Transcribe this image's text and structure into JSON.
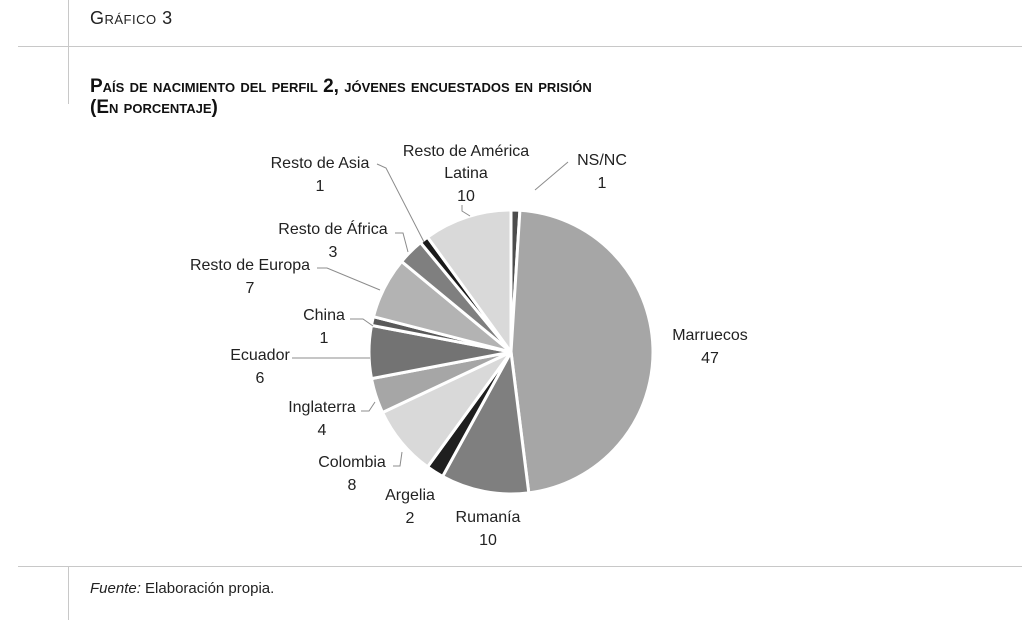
{
  "header": {
    "graph_label": "Gráfico 3"
  },
  "footer": {
    "source_label": "Fuente:",
    "source_text": "Elaboración propia."
  },
  "chart_data": {
    "type": "pie",
    "title": "País de nacimiento del perfil 2, jóvenes encuestados en prisión",
    "subtitle": "(En porcentaje)",
    "slices": [
      {
        "label": "NS/NC",
        "value": 1,
        "color": "#4d4d4d"
      },
      {
        "label": "Marruecos",
        "value": 47,
        "color": "#a6a6a6"
      },
      {
        "label": "Rumanía",
        "value": 10,
        "color": "#7f7f7f"
      },
      {
        "label": "Argelia",
        "value": 2,
        "color": "#1f1f1f"
      },
      {
        "label": "Colombia",
        "value": 8,
        "color": "#d9d9d9"
      },
      {
        "label": "Inglaterra",
        "value": 4,
        "color": "#a6a6a6"
      },
      {
        "label": "Ecuador",
        "value": 6,
        "color": "#737373"
      },
      {
        "label": "China",
        "value": 1,
        "color": "#595959"
      },
      {
        "label": "Resto de Europa",
        "value": 7,
        "color": "#b3b3b3"
      },
      {
        "label": "Resto de África",
        "value": 3,
        "color": "#7f7f7f"
      },
      {
        "label": "Resto de Asia",
        "value": 1,
        "color": "#1a1a1a"
      },
      {
        "label": "Resto de América Latina",
        "value": 10,
        "color": "#d9d9d9"
      }
    ]
  }
}
